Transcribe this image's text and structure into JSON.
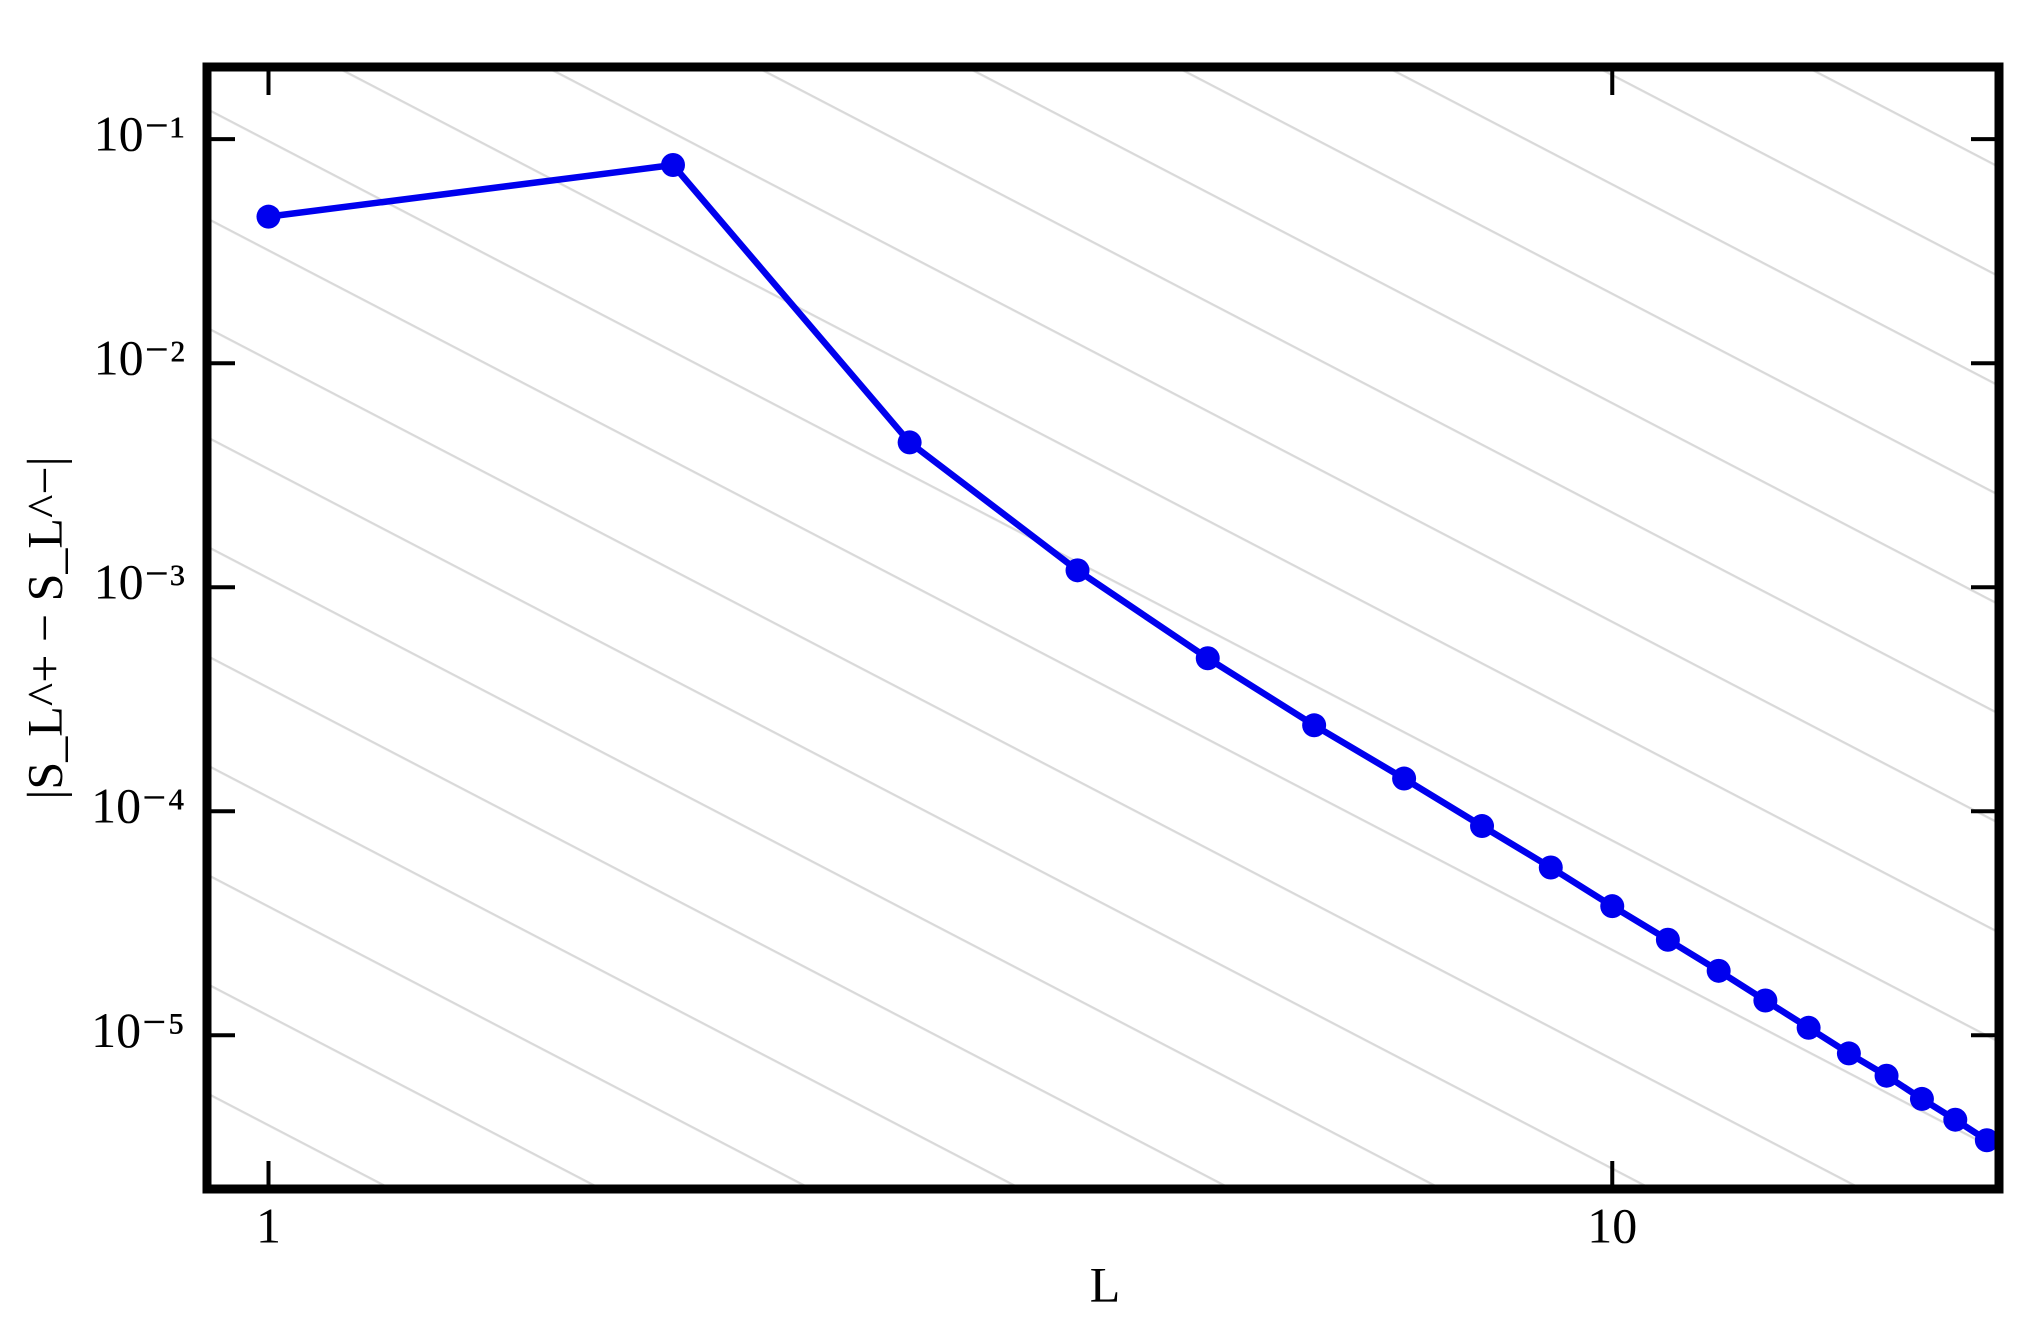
{
  "chart_data": {
    "type": "line",
    "xlabel": "L",
    "ylabel": "|S_L^+ − S_L^−|",
    "log_x": true,
    "log_y": true,
    "x": [
      1,
      2,
      3,
      4,
      5,
      6,
      7,
      8,
      9,
      10,
      11,
      12,
      13,
      14,
      15,
      16,
      17,
      18,
      19
    ],
    "series": [
      {
        "name": "|S_L^+ − S_L^−|",
        "color": "#0000ee",
        "values": [
          0.0451,
          0.0767,
          0.00443,
          0.00119,
          0.000482,
          0.000242,
          0.00014,
          8.59e-05,
          5.61e-05,
          3.77e-05,
          2.67e-05,
          1.94e-05,
          1.43e-05,
          1.08e-05,
          8.3e-06,
          6.6e-06,
          5.2e-06,
          4.2e-06,
          3.4e-06
        ]
      }
    ],
    "xlim": [
      0.9,
      19.4
    ],
    "ylim": [
      2.06e-06,
      0.21
    ],
    "xticks": [
      1,
      10
    ],
    "yticks": [
      {
        "value": 0.1,
        "label": "10⁻¹"
      },
      {
        "value": 0.01,
        "label": "10⁻²"
      },
      {
        "value": 0.001,
        "label": "10⁻³"
      },
      {
        "value": 0.0001,
        "label": "10⁻⁴"
      },
      {
        "value": 1e-05,
        "label": "10⁻⁵"
      }
    ]
  }
}
